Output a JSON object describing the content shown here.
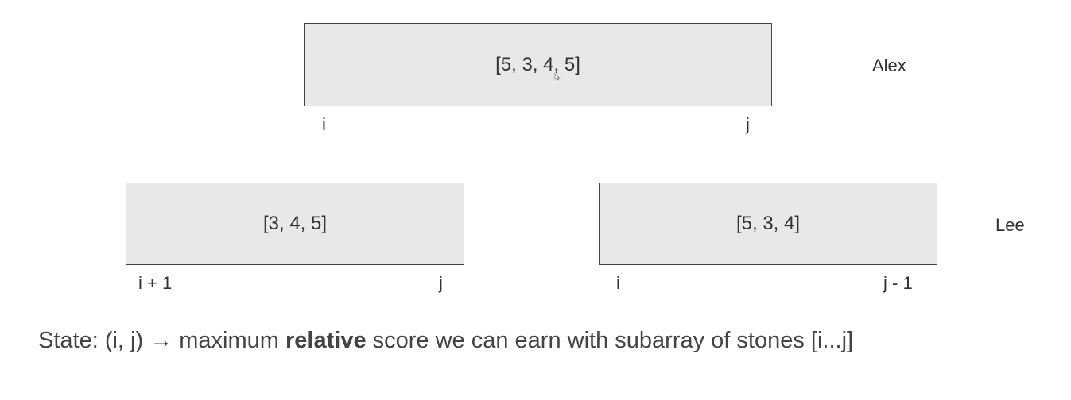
{
  "top_box": {
    "array": "[5, 3, 4, 5]",
    "left_index": "i",
    "right_index": "j"
  },
  "player_top": "Alex",
  "left_box": {
    "array": "[3, 4, 5]",
    "left_index": "i + 1",
    "right_index": "j"
  },
  "right_box": {
    "array": "[5, 3, 4]",
    "left_index": "i",
    "right_index": "j - 1"
  },
  "player_bottom": "Lee",
  "caption": {
    "prefix": "State: (i, j) → maximum ",
    "bold": "relative",
    "suffix": " score we can earn with subarray of stones [i...j]"
  },
  "colors": {
    "box_fill": "#e8e8e8",
    "box_border": "#444444",
    "text": "#333333"
  },
  "icons": {
    "cursor": "mouse-cursor-icon"
  }
}
